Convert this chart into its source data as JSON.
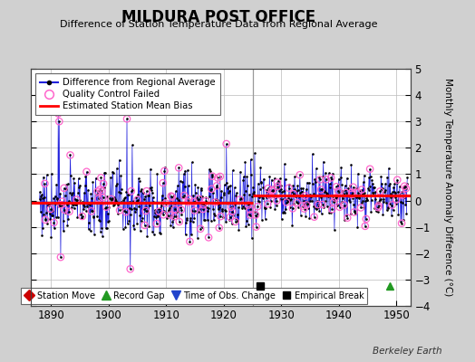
{
  "title": "MILDURA POST OFFICE",
  "subtitle": "Difference of Station Temperature Data from Regional Average",
  "ylabel": "Monthly Temperature Anomaly Difference (°C)",
  "xlabel_years": [
    1890,
    1900,
    1910,
    1920,
    1930,
    1940,
    1950
  ],
  "ylim": [
    -4,
    5
  ],
  "xlim": [
    1886.5,
    1952.5
  ],
  "bg_color": "#d0d0d0",
  "plot_bg_color": "#ffffff",
  "grid_color": "#bbbbbb",
  "bias_segments": [
    {
      "x": [
        1886.5,
        1925.0
      ],
      "y": [
        -0.08,
        -0.08
      ]
    },
    {
      "x": [
        1925.0,
        1952.5
      ],
      "y": [
        0.18,
        0.18
      ]
    }
  ],
  "vertical_line_x": 1925.0,
  "empirical_break_x": 1926.3,
  "empirical_break_y": -3.25,
  "record_gap_x": 1948.8,
  "record_gap_y": -3.25,
  "line_color": "#2222dd",
  "dot_color": "#000000",
  "qc_color": "#ff66cc",
  "bias_color": "#ff0000",
  "footer_text": "Berkeley Earth",
  "seed_data": 77,
  "seed_qc": 88,
  "start_year": 1888.0,
  "end_year": 1951.9
}
